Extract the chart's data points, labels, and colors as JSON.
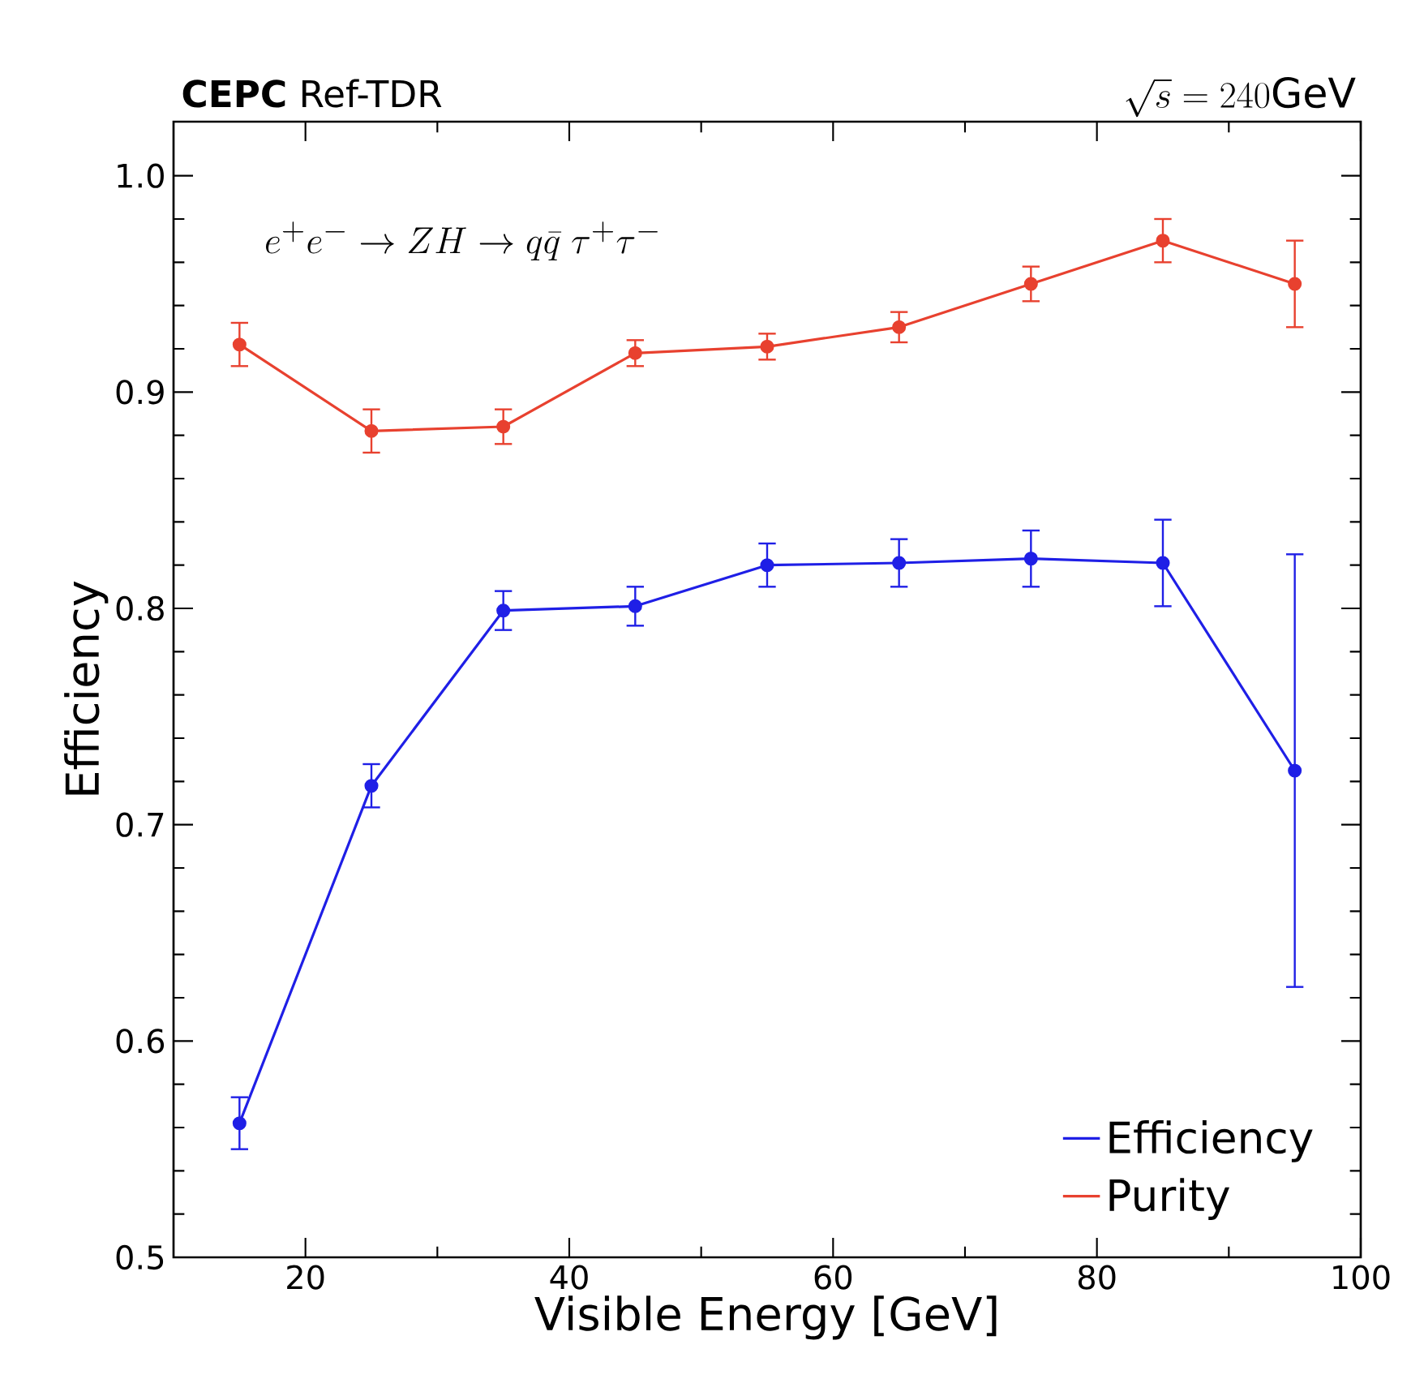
{
  "chart_data": {
    "type": "line",
    "title": "**CEPC** Ref-TDR",
    "annotations": [
      "\\sqrt{s} = 240\\mathrm{GeV}",
      "e^{+}e^{-}\\rightarrow ZH\\rightarrow q\\bar{q}\\;\\tau^{+}\\tau^{-}"
    ],
    "xlabel": "Visible  Energy [GeV]",
    "ylabel": "Efficiency",
    "x": [
      15,
      25,
      35,
      45,
      55,
      65,
      75,
      85,
      95
    ],
    "series": [
      {
        "name": "Efficiency",
        "color": "#1f1fe6",
        "values": [
          0.562,
          0.718,
          0.799,
          0.801,
          0.82,
          0.821,
          0.823,
          0.821,
          0.725
        ],
        "errors": [
          0.012,
          0.01,
          0.009,
          0.009,
          0.01,
          0.011,
          0.013,
          0.02,
          0.1
        ]
      },
      {
        "name": "Purity",
        "color": "#e8412f",
        "values": [
          0.922,
          0.882,
          0.884,
          0.918,
          0.921,
          0.93,
          0.95,
          0.97,
          0.95
        ],
        "errors": [
          0.01,
          0.01,
          0.008,
          0.006,
          0.006,
          0.007,
          0.008,
          0.01,
          0.02
        ]
      }
    ],
    "xlim": [
      10,
      100
    ],
    "ylim": [
      0.5,
      1.025
    ],
    "xticks": [
      20,
      40,
      60,
      80,
      100
    ],
    "yticks": [
      0.5,
      0.6,
      0.7,
      0.8,
      0.9,
      {
        "value": 1.0,
        "label": "1.0"
      }
    ],
    "marker": "circle",
    "legend": "bottom right",
    "grid": false
  }
}
